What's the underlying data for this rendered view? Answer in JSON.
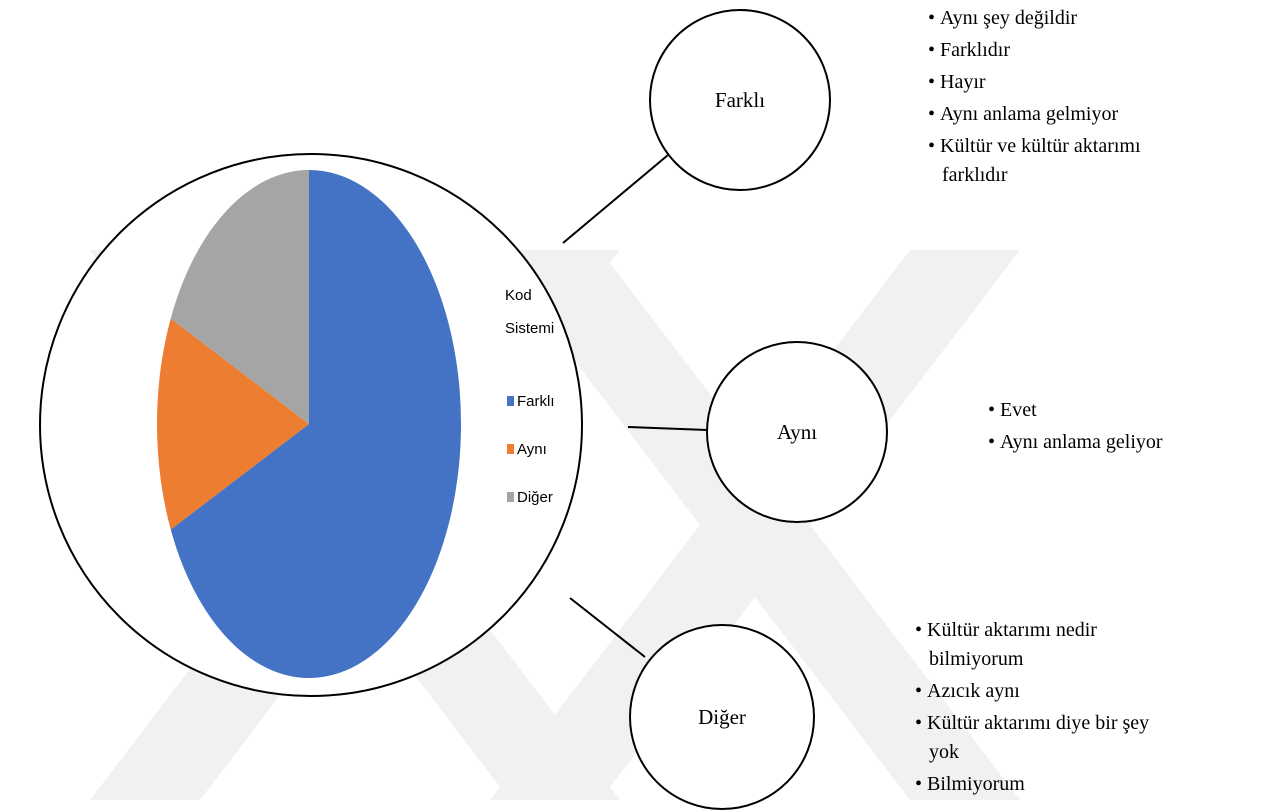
{
  "chart_data": {
    "type": "pie",
    "legend_title": "Kod Sistemi",
    "categories": [
      "Farklı",
      "Aynı",
      "Diğer"
    ],
    "values": [
      15,
      3,
      4
    ],
    "colors": [
      "#4472c4",
      "#ed7d31",
      "#a5a5a5"
    ]
  },
  "nodes": [
    {
      "label": "Farklı",
      "items": [
        "Aynı şey değildir",
        "Farklıdır",
        "Hayır",
        "Aynı anlama gelmiyor",
        "Kültür  ve kültür aktarımı farklıdır"
      ]
    },
    {
      "label": "Aynı",
      "items": [
        "Evet",
        "Aynı anlama geliyor"
      ]
    },
    {
      "label": "Diğer",
      "items": [
        "Kültür  aktarımı nedir bilmiyorum",
        "Azıcık aynı",
        "Kültür aktarımı diye bir şey yok",
        "Bilmiyorum"
      ]
    }
  ]
}
